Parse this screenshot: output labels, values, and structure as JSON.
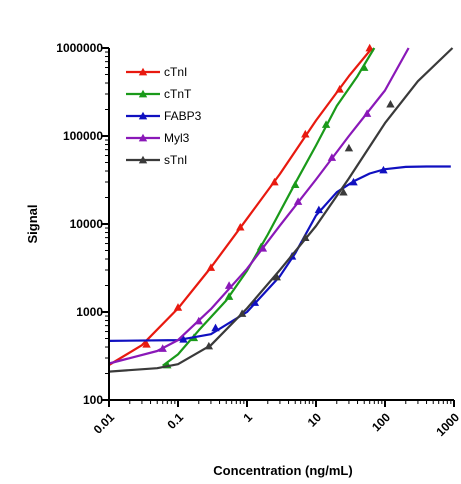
{
  "chart_data": {
    "type": "line",
    "title": "",
    "xlabel": "Concentration (ng/mL)",
    "ylabel": "Signal",
    "x_scale": "log",
    "y_scale": "log",
    "xlim": [
      0.01,
      1000
    ],
    "ylim": [
      100,
      1000000
    ],
    "x_tick_labels": [
      "0.01",
      "0.1",
      "1",
      "10",
      "100",
      "1000"
    ],
    "y_tick_labels": [
      "100",
      "1000",
      "10000",
      "100000",
      "1000000"
    ],
    "grid": false,
    "legend_position": "top-left",
    "series": [
      {
        "name": "cTnI",
        "color": "#e8190f",
        "marker": "triangle",
        "points": [
          [
            0.035,
            430
          ],
          [
            0.1,
            1130
          ],
          [
            0.3,
            3200
          ],
          [
            0.8,
            9200
          ],
          [
            2.5,
            30000
          ],
          [
            7,
            105000
          ],
          [
            22,
            340000
          ],
          [
            60,
            1000000
          ]
        ],
        "curve": [
          [
            0.01,
            250
          ],
          [
            0.03,
            420
          ],
          [
            0.1,
            1100
          ],
          [
            0.3,
            3200
          ],
          [
            1,
            11500
          ],
          [
            3,
            37000
          ],
          [
            10,
            150000
          ],
          [
            30,
            480000
          ],
          [
            65,
            1000000
          ]
        ]
      },
      {
        "name": "cTnT",
        "color": "#1a9a1a",
        "marker": "triangle",
        "points": [
          [
            0.07,
            250
          ],
          [
            0.17,
            510
          ],
          [
            0.55,
            1500
          ],
          [
            1.6,
            5500
          ],
          [
            5,
            28000
          ],
          [
            14,
            135000
          ],
          [
            50,
            600000
          ]
        ],
        "curve": [
          [
            0.06,
            245
          ],
          [
            0.1,
            330
          ],
          [
            0.2,
            620
          ],
          [
            0.5,
            1350
          ],
          [
            1,
            2950
          ],
          [
            2,
            7600
          ],
          [
            5,
            29000
          ],
          [
            10,
            78000
          ],
          [
            20,
            220000
          ],
          [
            40,
            480000
          ],
          [
            70,
            1000000
          ]
        ]
      },
      {
        "name": "FABP3",
        "color": "#1010c0",
        "marker": "triangle",
        "points": [
          [
            0.12,
            490
          ],
          [
            0.35,
            660
          ],
          [
            1.3,
            1280
          ],
          [
            4.5,
            4300
          ],
          [
            11,
            14500
          ],
          [
            35,
            30000
          ],
          [
            95,
            41000
          ]
        ],
        "curve": [
          [
            0.01,
            470
          ],
          [
            0.1,
            480
          ],
          [
            0.3,
            560
          ],
          [
            1,
            1000
          ],
          [
            3,
            2550
          ],
          [
            5,
            4650
          ],
          [
            10,
            12500
          ],
          [
            20,
            23000
          ],
          [
            35,
            30500
          ],
          [
            60,
            37500
          ],
          [
            100,
            42000
          ],
          [
            200,
            44500
          ],
          [
            400,
            45000
          ],
          [
            900,
            45000
          ]
        ]
      },
      {
        "name": "Myl3",
        "color": "#8a18b8",
        "marker": "triangle",
        "points": [
          [
            0.06,
            385
          ],
          [
            0.2,
            790
          ],
          [
            0.55,
            2000
          ],
          [
            1.7,
            5300
          ],
          [
            5.5,
            18000
          ],
          [
            17,
            57000
          ],
          [
            55,
            180000
          ]
        ],
        "curve": [
          [
            0.01,
            260
          ],
          [
            0.05,
            360
          ],
          [
            0.1,
            480
          ],
          [
            0.3,
            1080
          ],
          [
            1,
            3100
          ],
          [
            3,
            9600
          ],
          [
            10,
            32000
          ],
          [
            30,
            100000
          ],
          [
            100,
            330000
          ],
          [
            220,
            1000000
          ]
        ]
      },
      {
        "name": "sTnI",
        "color": "#3a3a3a",
        "marker": "triangle",
        "points": [
          [
            0.28,
            410
          ],
          [
            0.85,
            960
          ],
          [
            2.7,
            2500
          ],
          [
            7,
            7000
          ],
          [
            25,
            23000
          ],
          [
            30,
            73000
          ],
          [
            120,
            230000
          ]
        ],
        "curve": [
          [
            0.01,
            210
          ],
          [
            0.05,
            230
          ],
          [
            0.1,
            255
          ],
          [
            0.3,
            420
          ],
          [
            1,
            1100
          ],
          [
            3,
            3000
          ],
          [
            10,
            9500
          ],
          [
            30,
            33000
          ],
          [
            100,
            140000
          ],
          [
            300,
            420000
          ],
          [
            950,
            1000000
          ]
        ]
      }
    ]
  }
}
